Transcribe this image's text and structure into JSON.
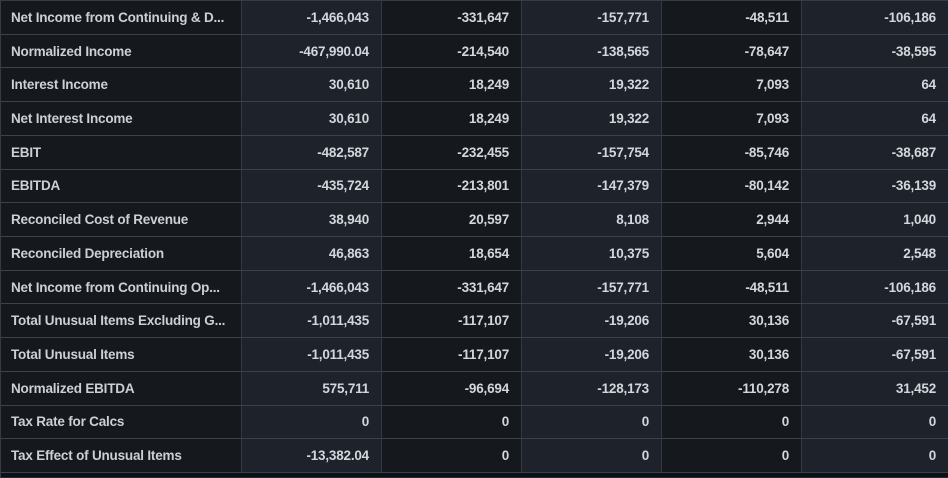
{
  "app": {
    "description": "Dark-themed financial statement data grid (income statement metrics by period)"
  },
  "colors": {
    "cell_dark": "#15181d",
    "cell_light": "#1e222a",
    "label_column_bg": "#15181d",
    "grid_line_horizontal": "#3b424b",
    "grid_line_vertical": "#333a43",
    "text": "#d3d6db",
    "footer_strip": "#0d1016"
  },
  "table": {
    "column_count": 6,
    "value_column_shading": [
      "light",
      "dark",
      "light",
      "dark",
      "light"
    ],
    "rows": [
      {
        "label": "Net Income from Continuing & D...",
        "values": [
          "-1,466,043",
          "-331,647",
          "-157,771",
          "-48,511",
          "-106,186"
        ]
      },
      {
        "label": "Normalized Income",
        "values": [
          "-467,990.04",
          "-214,540",
          "-138,565",
          "-78,647",
          "-38,595"
        ]
      },
      {
        "label": "Interest Income",
        "values": [
          "30,610",
          "18,249",
          "19,322",
          "7,093",
          "64"
        ]
      },
      {
        "label": "Net Interest Income",
        "values": [
          "30,610",
          "18,249",
          "19,322",
          "7,093",
          "64"
        ]
      },
      {
        "label": "EBIT",
        "values": [
          "-482,587",
          "-232,455",
          "-157,754",
          "-85,746",
          "-38,687"
        ]
      },
      {
        "label": "EBITDA",
        "values": [
          "-435,724",
          "-213,801",
          "-147,379",
          "-80,142",
          "-36,139"
        ]
      },
      {
        "label": "Reconciled Cost of Revenue",
        "values": [
          "38,940",
          "20,597",
          "8,108",
          "2,944",
          "1,040"
        ]
      },
      {
        "label": "Reconciled Depreciation",
        "values": [
          "46,863",
          "18,654",
          "10,375",
          "5,604",
          "2,548"
        ]
      },
      {
        "label": "Net Income from Continuing Op...",
        "values": [
          "-1,466,043",
          "-331,647",
          "-157,771",
          "-48,511",
          "-106,186"
        ]
      },
      {
        "label": "Total Unusual Items Excluding G...",
        "values": [
          "-1,011,435",
          "-117,107",
          "-19,206",
          "30,136",
          "-67,591"
        ]
      },
      {
        "label": "Total Unusual Items",
        "values": [
          "-1,011,435",
          "-117,107",
          "-19,206",
          "30,136",
          "-67,591"
        ]
      },
      {
        "label": "Normalized EBITDA",
        "values": [
          "575,711",
          "-96,694",
          "-128,173",
          "-110,278",
          "31,452"
        ]
      },
      {
        "label": "Tax Rate for Calcs",
        "values": [
          "0",
          "0",
          "0",
          "0",
          "0"
        ]
      },
      {
        "label": "Tax Effect of Unusual Items",
        "values": [
          "-13,382.04",
          "0",
          "0",
          "0",
          "0"
        ]
      }
    ]
  }
}
